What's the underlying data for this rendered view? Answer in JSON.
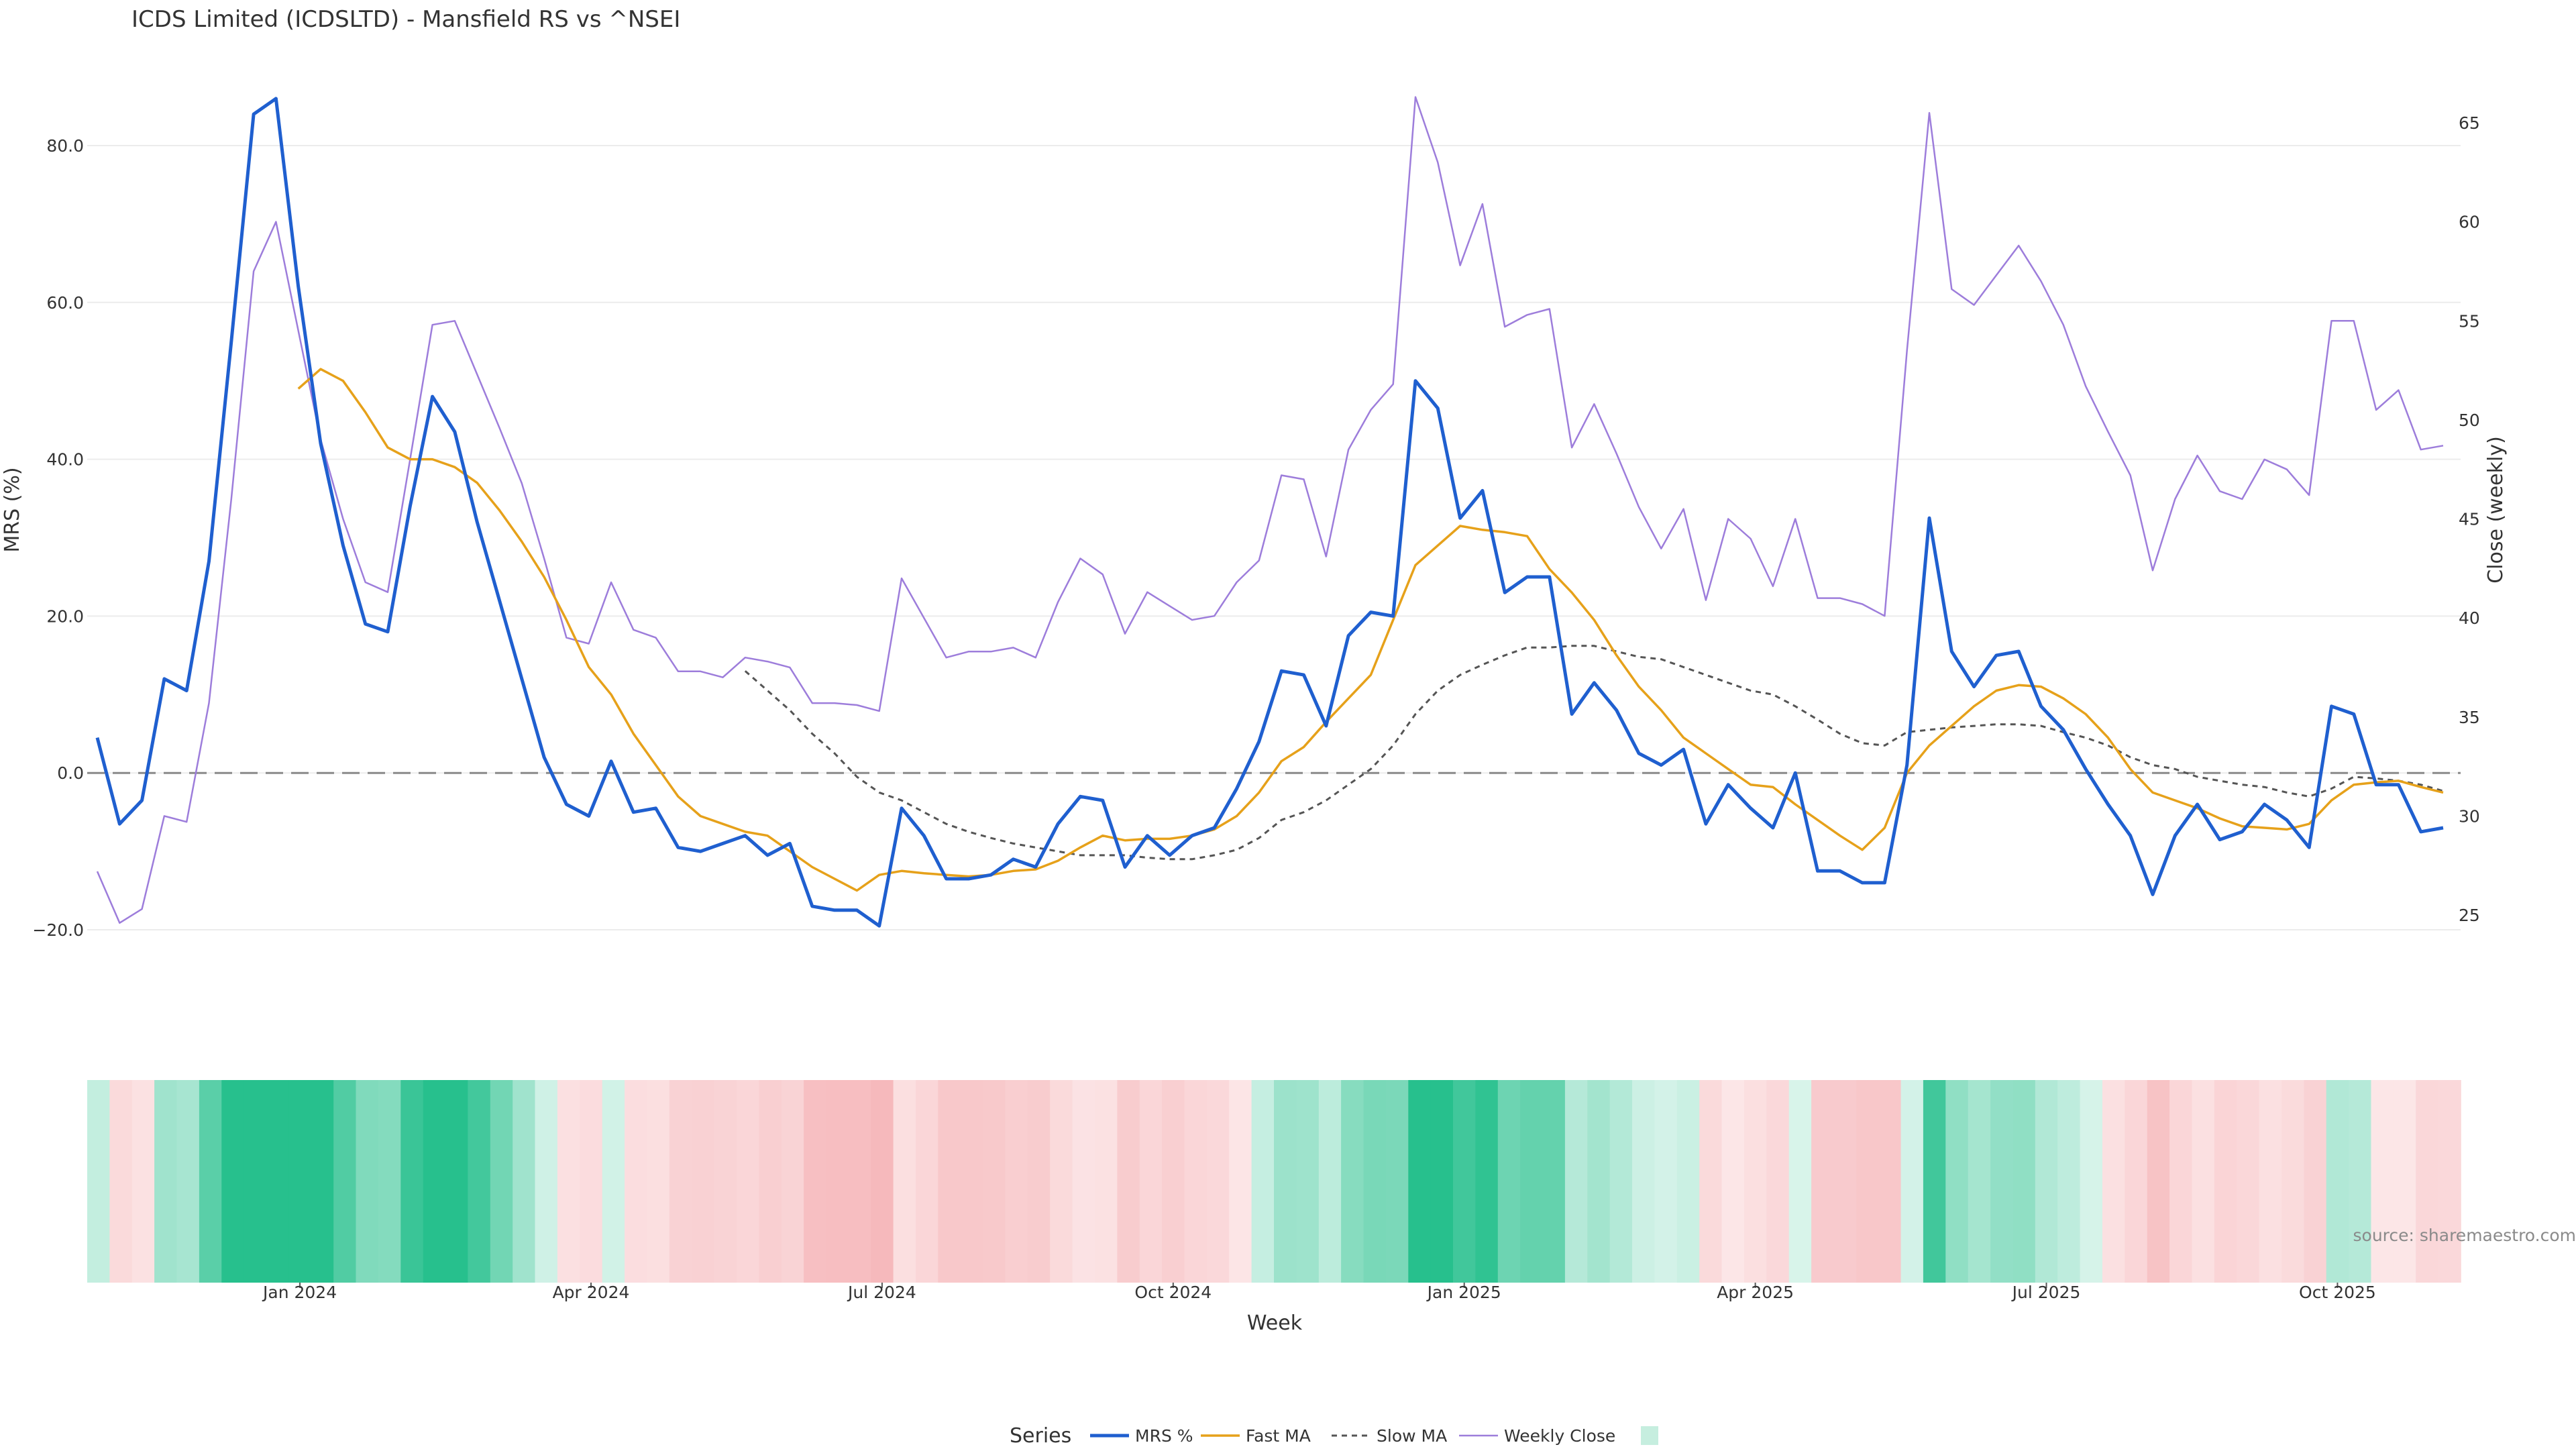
{
  "chart_data": {
    "type": "line",
    "title": "ICDS Limited (ICDSLTD) - Mansfield RS vs ^NSEI",
    "xlabel": "Week",
    "ylabel": "MRS (%)",
    "y2label": "Close (weekly)",
    "ylim": [
      -25,
      92
    ],
    "y2lim": [
      22,
      68
    ],
    "yticks": [
      "80.0",
      "60.0",
      "40.0",
      "20.0",
      "0.0",
      "−20.0"
    ],
    "yticks_values": [
      80,
      60,
      40,
      20,
      0,
      -20
    ],
    "y2ticks": [
      "65",
      "60",
      "55",
      "50",
      "45",
      "40",
      "35",
      "30",
      "25"
    ],
    "y2ticks_values": [
      65,
      60,
      55,
      50,
      45,
      40,
      35,
      30,
      25
    ],
    "xticks": [
      "Jan 2024",
      "Apr 2024",
      "Jul 2024",
      "Oct 2024",
      "Jan 2025",
      "Apr 2025",
      "Jul 2025",
      "Oct 2025"
    ],
    "xticks_index": [
      9.5,
      22.5,
      35.5,
      48.5,
      61.5,
      74.5,
      87.5,
      100.5
    ],
    "reference_line": 0,
    "legend_title": "Series",
    "legend": [
      "MRS %",
      "Fast MA",
      "Slow MA",
      "Weekly Close"
    ],
    "source": "source: sharemaestro.com",
    "colors": {
      "mrs": "#1f5fcf",
      "fast": "#e6a11a",
      "slow": "#555555",
      "close": "#9d7ddb",
      "zero": "#8a8a8a",
      "grid": "#ececec"
    },
    "series": [
      {
        "name": "MRS %",
        "values": [
          4.5,
          -6.5,
          -3.5,
          12.0,
          10.5,
          27.0,
          55.0,
          84.0,
          86.0,
          62.0,
          42.0,
          29.0,
          19.0,
          18.0,
          34.0,
          48.0,
          43.5,
          32.0,
          22.0,
          12.0,
          2.0,
          -4.0,
          -5.5,
          1.5,
          -5.0,
          -4.5,
          -9.5,
          -10.0,
          -9.0,
          -8.0,
          -10.5,
          -9.0,
          -17.0,
          -17.5,
          -17.5,
          -19.5,
          -4.5,
          -8.0,
          -13.5,
          -13.5,
          -13.0,
          -11.0,
          -12.0,
          -6.5,
          -3.0,
          -3.5,
          -12.0,
          -8.0,
          -10.5,
          -8.0,
          -7.0,
          -2.0,
          4.0,
          13.0,
          12.5,
          6.0,
          17.5,
          20.5,
          20.0,
          50.0,
          46.5,
          32.5,
          36.0,
          23.0,
          25.0,
          25.0,
          7.5,
          11.5,
          8.0,
          2.5,
          1.0,
          3.0,
          -6.5,
          -1.5,
          -4.5,
          -7.0,
          0.0,
          -12.5,
          -12.5,
          -14.0,
          -14.0,
          1.0,
          32.5,
          15.5,
          11.0,
          15.0,
          15.5,
          8.5,
          5.5,
          0.5,
          -4.0,
          -8.0,
          -15.5,
          -8.0,
          -4.0,
          -8.5,
          -7.5,
          -4.0,
          -6.0,
          -9.5,
          8.5,
          7.5,
          -1.5,
          -1.5,
          -7.5,
          -7.0
        ]
      },
      {
        "name": "Fast MA",
        "values": [
          null,
          null,
          null,
          null,
          null,
          null,
          null,
          null,
          null,
          49.0,
          51.5,
          50.0,
          46.0,
          41.5,
          40.0,
          40.0,
          39.0,
          37.0,
          33.5,
          29.5,
          25.0,
          19.5,
          13.5,
          10.0,
          5.0,
          1.0,
          -3.0,
          -5.5,
          -6.5,
          -7.5,
          -8.0,
          -10.0,
          -12.0,
          -13.5,
          -15.0,
          -13.0,
          -12.5,
          -12.8,
          -13.0,
          -13.2,
          -13.0,
          -12.5,
          -12.3,
          -11.2,
          -9.5,
          -8.0,
          -8.6,
          -8.4,
          -8.4,
          -8.0,
          -7.2,
          -5.5,
          -2.5,
          1.5,
          3.3,
          6.5,
          9.5,
          12.5,
          19.5,
          26.5,
          29.0,
          31.5,
          31.0,
          30.7,
          30.2,
          26.0,
          23.0,
          19.5,
          15.0,
          11.0,
          8.0,
          4.5,
          2.5,
          0.5,
          -1.5,
          -1.8,
          -4.0,
          -6.0,
          -8.0,
          -9.8,
          -7.0,
          0.0,
          3.5,
          6.0,
          8.5,
          10.5,
          11.2,
          11.0,
          9.5,
          7.5,
          4.5,
          0.5,
          -2.5,
          -3.5,
          -4.5,
          -5.8,
          -6.8,
          -7.0,
          -7.2,
          -6.5,
          -3.5,
          -1.5,
          -1.2,
          -1.0,
          -1.8,
          -2.5
        ]
      },
      {
        "name": "Slow MA",
        "values": [
          null,
          null,
          null,
          null,
          null,
          null,
          null,
          null,
          null,
          null,
          null,
          null,
          null,
          null,
          null,
          null,
          null,
          null,
          null,
          null,
          null,
          null,
          null,
          null,
          null,
          null,
          null,
          null,
          null,
          13.0,
          10.5,
          8.0,
          5.0,
          2.5,
          -0.5,
          -2.5,
          -3.5,
          -5.0,
          -6.5,
          -7.5,
          -8.3,
          -9.0,
          -9.5,
          -10.0,
          -10.5,
          -10.5,
          -10.5,
          -10.8,
          -11.0,
          -11.0,
          -10.5,
          -9.8,
          -8.3,
          -6.0,
          -5.0,
          -3.5,
          -1.5,
          0.5,
          3.5,
          7.5,
          10.5,
          12.5,
          13.8,
          15.0,
          16.0,
          16.0,
          16.2,
          16.2,
          15.5,
          14.8,
          14.5,
          13.5,
          12.5,
          11.5,
          10.5,
          10.0,
          8.5,
          6.8,
          5.0,
          3.8,
          3.5,
          5.2,
          5.5,
          5.8,
          6.0,
          6.2,
          6.2,
          6.0,
          5.2,
          4.5,
          3.5,
          2.0,
          1.0,
          0.5,
          -0.5,
          -1.0,
          -1.5,
          -1.8,
          -2.5,
          -3.0,
          -2.0,
          -0.5,
          -0.7,
          -1.0,
          -1.5,
          -2.3
        ]
      },
      {
        "name": "Weekly Close",
        "values": [
          27.2,
          24.6,
          25.3,
          30.0,
          29.7,
          35.7,
          46.0,
          57.5,
          60.0,
          54.5,
          49.0,
          45.0,
          41.8,
          41.3,
          48.0,
          54.8,
          55.0,
          52.3,
          49.6,
          46.8,
          43.0,
          39.0,
          38.7,
          41.8,
          39.4,
          39.0,
          37.3,
          37.3,
          37.0,
          38.0,
          37.8,
          37.5,
          35.7,
          35.7,
          35.6,
          35.3,
          42.0,
          40.0,
          38.0,
          38.3,
          38.3,
          38.5,
          38.0,
          40.8,
          43.0,
          42.2,
          39.2,
          41.3,
          40.6,
          39.9,
          40.1,
          41.8,
          42.9,
          47.2,
          47.0,
          43.1,
          48.5,
          50.5,
          51.8,
          66.3,
          63.0,
          57.8,
          60.9,
          54.7,
          55.3,
          55.6,
          48.6,
          50.8,
          48.3,
          45.6,
          43.5,
          45.5,
          40.9,
          45.0,
          44.0,
          41.6,
          45.0,
          41.0,
          41.0,
          40.7,
          40.1,
          53.5,
          65.5,
          56.6,
          55.8,
          57.3,
          58.8,
          57.0,
          54.8,
          51.7,
          49.4,
          47.2,
          42.4,
          46.0,
          48.2,
          46.4,
          46.0,
          48.0,
          47.5,
          46.2,
          55.0,
          55.0,
          50.5,
          51.5,
          48.5,
          48.7
        ]
      }
    ],
    "heatmap": {
      "values": [
        4.5,
        -6.5,
        -3.5,
        12.0,
        10.5,
        27.0,
        55.0,
        84.0,
        86.0,
        62.0,
        42.0,
        29.0,
        19.0,
        18.0,
        34.0,
        48.0,
        43.5,
        32.0,
        22.0,
        12.0,
        2.0,
        -4.0,
        -5.5,
        1.5,
        -5.0,
        -4.5,
        -9.5,
        -10.0,
        -9.0,
        -8.0,
        -10.5,
        -9.0,
        -17.0,
        -17.5,
        -17.5,
        -19.5,
        -4.5,
        -8.0,
        -13.5,
        -13.5,
        -13.0,
        -11.0,
        -12.0,
        -6.5,
        -3.0,
        -3.5,
        -12.0,
        -8.0,
        -10.5,
        -8.0,
        -7.0,
        -2.0,
        4.0,
        13.0,
        12.5,
        6.0,
        17.5,
        20.5,
        20.0,
        50.0,
        46.5,
        32.5,
        36.0,
        23.0,
        25.0,
        25.0,
        7.5,
        11.5,
        8.0,
        2.5,
        1.0,
        3.0,
        -6.5,
        -1.5,
        -4.5,
        -7.0,
        0.0,
        -12.5,
        -12.5,
        -14.0,
        -14.0,
        1.0,
        32.5,
        15.5,
        11.0,
        15.0,
        15.5,
        8.5,
        5.5,
        0.5,
        -4.0,
        -8.0,
        -15.5,
        -8.0,
        -4.0,
        -8.5,
        -7.5,
        -4.0,
        -6.0,
        -9.5,
        8.5,
        7.5,
        -1.5,
        -1.5,
        -7.5,
        -7.0
      ],
      "positive_color": "#27c08d",
      "negative_color": "#f08a8f"
    }
  }
}
